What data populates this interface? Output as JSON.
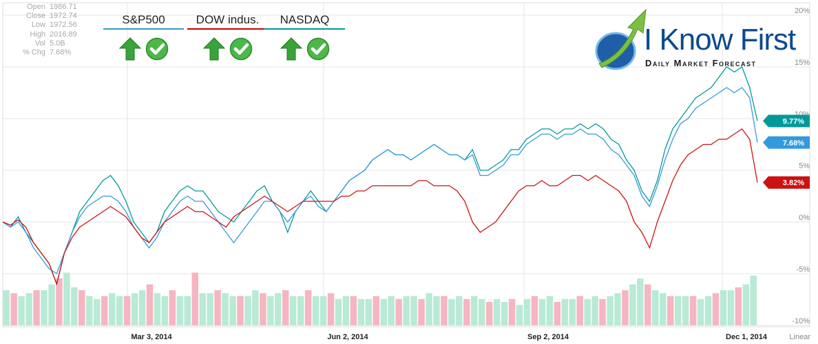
{
  "stats": [
    {
      "label": "Open",
      "value": "1986.71"
    },
    {
      "label": "Close",
      "value": "1972.74"
    },
    {
      "label": "Low",
      "value": "1972.56"
    },
    {
      "label": "High",
      "value": "2016.89"
    },
    {
      "label": "Vol",
      "value": "5.0B"
    },
    {
      "label": "% Chg",
      "value": "7.68%"
    }
  ],
  "tickers": [
    {
      "name": "S&P500",
      "underline": "#3399cc"
    },
    {
      "name": "DOW indus.",
      "underline": "#cc0000"
    },
    {
      "name": "NASDAQ",
      "underline": "#009999"
    }
  ],
  "logo": {
    "title": "I Know First",
    "subtitle": "Daily Market Forecast"
  },
  "chart_data": {
    "type": "line",
    "scale_label": "Linear",
    "ylim": [
      -10,
      20
    ],
    "y_ticks": [
      "20%",
      "15%",
      "10%",
      "5%",
      "0%",
      "-5%",
      "-10%"
    ],
    "x_ticks": [
      "Mar 3, 2014",
      "Jun 2, 2014",
      "Sep 2, 2014",
      "Dec 1, 2014"
    ],
    "grid": true,
    "series": [
      {
        "color": "#009999",
        "last_label": "9.77%",
        "values": [
          0,
          -0.5,
          0.5,
          -1,
          -2,
          -3,
          -4,
          -6,
          -3,
          -1,
          1,
          2,
          3,
          4,
          4.5,
          3.5,
          2,
          0,
          -1,
          -2,
          -1,
          1,
          2,
          3,
          3.5,
          3,
          3,
          2,
          1,
          0.5,
          0,
          1,
          2,
          3,
          3.5,
          2,
          1,
          -1,
          1,
          2,
          3,
          2,
          1,
          2,
          3,
          4,
          4.5,
          5,
          6,
          6.5,
          7,
          6.5,
          6.5,
          6,
          6.5,
          7,
          7.5,
          7,
          6.5,
          6.5,
          6,
          7,
          5,
          5,
          5.5,
          6,
          7,
          7,
          8,
          8.5,
          9,
          9,
          8.5,
          9,
          9,
          9.5,
          9,
          9.5,
          9,
          8,
          7.5,
          6,
          5,
          3,
          2,
          4,
          7,
          9,
          10,
          11,
          12,
          12.5,
          13,
          14,
          15,
          14.5,
          15,
          13,
          9.77
        ]
      },
      {
        "color": "#3399dd",
        "last_label": "7.68%",
        "values": [
          0,
          -0.5,
          0,
          -1,
          -2.5,
          -3.5,
          -4.5,
          -5,
          -3,
          -1,
          0.5,
          1.5,
          2,
          2.5,
          2.5,
          2,
          1,
          -0.5,
          -1.5,
          -2.5,
          -1.5,
          0,
          1,
          2,
          2.5,
          2,
          2,
          1,
          0,
          -1,
          -2,
          -1,
          0,
          1,
          2,
          2,
          1,
          0,
          1,
          2,
          2.5,
          1.5,
          1,
          2,
          3,
          4,
          4.5,
          5,
          6,
          6.5,
          7,
          6.5,
          6.5,
          6,
          6.5,
          7,
          7.5,
          7,
          6.5,
          6.5,
          6,
          6.5,
          4.5,
          4.5,
          5,
          5.5,
          6.5,
          6.5,
          7.5,
          8,
          8.5,
          8.5,
          8,
          8.5,
          8.5,
          9,
          8.5,
          8.5,
          8,
          7,
          6.5,
          5.5,
          4.5,
          2.5,
          1.5,
          3.5,
          6,
          8,
          9.5,
          10,
          11,
          11.5,
          12,
          12.5,
          13,
          12.5,
          13,
          12,
          7.68
        ]
      },
      {
        "color": "#cc1111",
        "last_label": "3.82%",
        "values": [
          0,
          -0.3,
          0.2,
          -0.5,
          -2,
          -3,
          -4,
          -6,
          -3,
          -1.5,
          -0.5,
          0,
          0.5,
          1,
          1.5,
          1,
          0.5,
          -0.5,
          -1.5,
          -2,
          -1,
          0,
          0.5,
          1,
          1.5,
          1,
          1,
          0.5,
          0,
          -0.5,
          0.5,
          1,
          1.5,
          2,
          2.5,
          2,
          1.5,
          1,
          1.5,
          2,
          2,
          2,
          2,
          2,
          2.5,
          2.5,
          3,
          3,
          3.5,
          3.5,
          3.5,
          3.5,
          3.5,
          3.5,
          4,
          4,
          3.5,
          3.5,
          3.5,
          3,
          2,
          0,
          -1,
          -0.5,
          0,
          1,
          2,
          3,
          3.5,
          3.5,
          4,
          3.5,
          3.5,
          4,
          4.5,
          4.5,
          4,
          4.5,
          4,
          3.5,
          3,
          2,
          0,
          -1,
          -2.5,
          0,
          2,
          4,
          5.5,
          6.5,
          7,
          7.5,
          7.5,
          8,
          8,
          8.5,
          9,
          8,
          3.82
        ]
      }
    ],
    "volume": [
      0.6,
      0.55,
      0.5,
      0.55,
      0.6,
      0.6,
      0.7,
      0.8,
      0.9,
      0.65,
      0.6,
      0.5,
      0.45,
      0.5,
      0.55,
      0.5,
      0.5,
      0.55,
      0.6,
      0.7,
      0.55,
      0.5,
      0.6,
      0.5,
      0.5,
      0.9,
      0.55,
      0.55,
      0.6,
      0.55,
      0.5,
      0.5,
      0.5,
      0.6,
      0.55,
      0.5,
      0.55,
      0.6,
      0.5,
      0.5,
      0.6,
      0.5,
      0.5,
      0.55,
      0.45,
      0.5,
      0.5,
      0.45,
      0.45,
      0.5,
      0.45,
      0.5,
      0.45,
      0.5,
      0.5,
      0.45,
      0.55,
      0.5,
      0.5,
      0.45,
      0.5,
      0.45,
      0.5,
      0.45,
      0.4,
      0.45,
      0.4,
      0.45,
      0.35,
      0.45,
      0.5,
      0.45,
      0.5,
      0.4,
      0.45,
      0.45,
      0.5,
      0.45,
      0.5,
      0.45,
      0.5,
      0.55,
      0.6,
      0.7,
      0.8,
      0.7,
      0.6,
      0.55,
      0.5,
      0.5,
      0.5,
      0.5,
      0.45,
      0.5,
      0.55,
      0.6,
      0.6,
      0.65,
      0.7,
      0.85
    ]
  }
}
